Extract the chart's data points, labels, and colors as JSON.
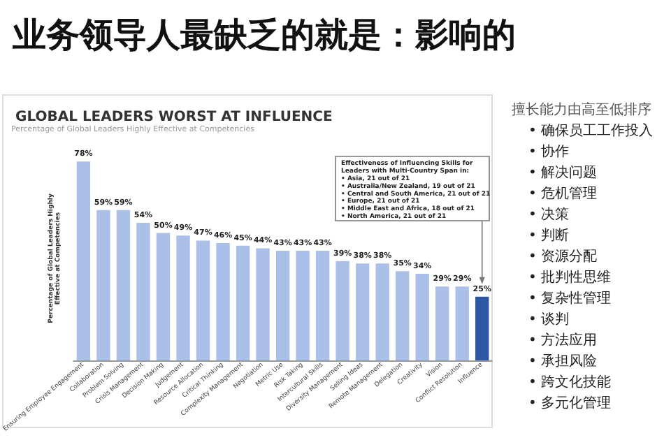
{
  "chart_data": {
    "type": "bar",
    "title": "业务领导人最缺乏的就是：影响的",
    "subtitle": "GLOBAL LEADERS WORST AT INFLUENCE",
    "ylabel": "Percentage of Global Leaders Highly\nEffective at Competencies",
    "categories": [
      "Ensuring Employee Engagement",
      "Collaboration",
      "Problem Solving",
      "Crisis Management",
      "Decision Making",
      "Judgement",
      "Resource Allocation",
      "Critical Thinking",
      "Complexity Management",
      "Negotiation",
      "Metric Use",
      "Risk Taking",
      "Intercultural Skills",
      "Diversity Management",
      "Selling Ideas",
      "Remote Management",
      "Delegation",
      "Creativity",
      "Vision",
      "Conflict Resolution",
      "Influence"
    ],
    "values": [
      78,
      59,
      59,
      54,
      50,
      49,
      47,
      46,
      45,
      44,
      43,
      43,
      43,
      39,
      38,
      38,
      35,
      34,
      29,
      29,
      25
    ],
    "value_labels": [
      "78%",
      "59%",
      "59%",
      "54%",
      "50%",
      "49%",
      "47%",
      "46%",
      "45%",
      "44%",
      "43%",
      "43%",
      "43%",
      "39%",
      "38%",
      "38%",
      "35%",
      "34%",
      "29%",
      "29%",
      "25%"
    ],
    "colors": [
      "#abc0e8",
      "#abc0e8",
      "#abc0e8",
      "#abc0e8",
      "#abc0e8",
      "#abc0e8",
      "#abc0e8",
      "#abc0e8",
      "#abc0e8",
      "#abc0e8",
      "#abc0e8",
      "#abc0e8",
      "#abc0e8",
      "#abc0e8",
      "#abc0e8",
      "#abc0e8",
      "#abc0e8",
      "#abc0e8",
      "#abc0e8",
      "#abc0e8",
      "#2e58a6"
    ],
    "grid": false,
    "annotations": [
      "Percentage of Global Leaders Highly Effective at Competencies",
      "Effectiveness of Influencing Skills for\nLeaders with Multi-Country Span in:\n• Asia, 21 out of 21\n• Australia/New Zealand, 19 out of 21\n• Central and South America, 21 out of 21\n• Europe, 21 out of 21\n• Middle East and Africa, 18 out of 21\n• North America, 21 out of 21",
      "擅长能力由高至低排序",
      "• 确保员工工作投入",
      "• 协作",
      "• 解决问题",
      "• 危机管理",
      "• 决策",
      "• 判断",
      "• 资源分配",
      "• 批判性思维",
      "• 复杂性管理",
      "• 谈判",
      "• 方法应用",
      "• 承担风险",
      "• 跨文化技能",
      "• 多元化管理"
    ]
  }
}
